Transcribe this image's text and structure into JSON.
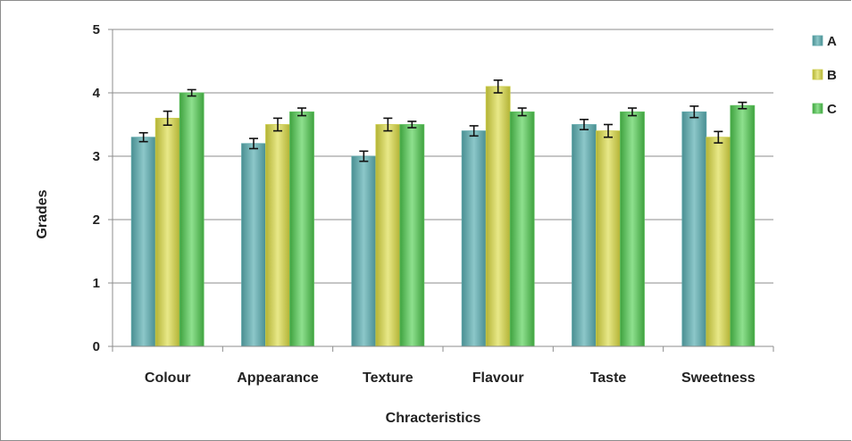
{
  "chart_data": {
    "type": "bar",
    "title": "",
    "xlabel": "Chracteristics",
    "ylabel": "Grades",
    "ylim": [
      0,
      5
    ],
    "yticks": [
      0,
      1,
      2,
      3,
      4,
      5
    ],
    "grid": true,
    "legend": "right",
    "categories": [
      "Colour",
      "Appearance",
      "Texture",
      "Flavour",
      "Taste",
      "Sweetness"
    ],
    "series": [
      {
        "name": "A",
        "color": "#5fa8ab",
        "values": [
          3.3,
          3.2,
          3.0,
          3.4,
          3.5,
          3.7
        ],
        "errors": [
          0.07,
          0.08,
          0.08,
          0.08,
          0.08,
          0.09
        ]
      },
      {
        "name": "B",
        "color": "#cccc4a",
        "values": [
          3.6,
          3.5,
          3.5,
          4.1,
          3.4,
          3.3
        ],
        "errors": [
          0.11,
          0.1,
          0.1,
          0.1,
          0.1,
          0.09
        ]
      },
      {
        "name": "C",
        "color": "#5cbf5c",
        "values": [
          4.0,
          3.7,
          3.5,
          3.7,
          3.7,
          3.8
        ],
        "errors": [
          0.05,
          0.06,
          0.05,
          0.06,
          0.06,
          0.05
        ]
      }
    ]
  }
}
